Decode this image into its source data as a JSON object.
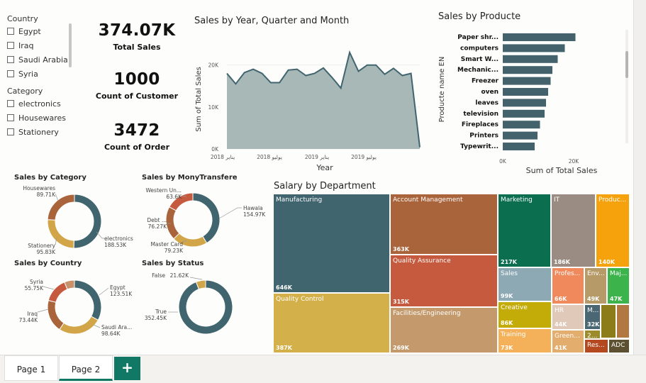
{
  "slicers": {
    "country": {
      "title": "Country",
      "items": [
        "Egypt",
        "Iraq",
        "Saudi Arabia",
        "Syria"
      ]
    },
    "category": {
      "title": "Category",
      "items": [
        "electronics",
        "Housewares",
        "Stationery"
      ]
    }
  },
  "kpis": [
    {
      "value": "374.07K",
      "label": "Total Sales"
    },
    {
      "value": "1000",
      "label": "Count of Customer"
    },
    {
      "value": "3472",
      "label": "Count of Order"
    }
  ],
  "colors": {
    "teal": "#41656f",
    "orange": "#d3a549",
    "brown": "#a9643b",
    "red": "#c55a3f",
    "area": "#a7b8b7",
    "bar": "#44626c",
    "green": "#117865"
  },
  "chart_data": [
    {
      "id": "sales_area",
      "type": "area",
      "title": "Sales by Year, Quarter and Month",
      "xlabel": "Year",
      "ylabel": "Sum of Total Sales",
      "x_ticks": [
        "2018 يناير",
        "2018 يوليو",
        "2019 يناير",
        "2019 يوليو"
      ],
      "y_ticks": [
        "0K",
        "10K",
        "20K"
      ],
      "ylim": [
        0,
        24000
      ],
      "values": [
        18000,
        15500,
        18200,
        19000,
        18000,
        15800,
        15800,
        18800,
        19000,
        17500,
        18000,
        19300,
        17000,
        14500,
        23000,
        18500,
        20000,
        20000,
        17800,
        19200,
        17500,
        18000,
        400
      ]
    },
    {
      "id": "sales_product",
      "type": "bar",
      "orientation": "horizontal",
      "title": "Sales by Producte",
      "xlabel": "Sum of Total Sales",
      "ylabel": "Producte name EN",
      "x_ticks": [
        "0K",
        "20K"
      ],
      "xlim": [
        0,
        25000
      ],
      "categories": [
        "Paper shr...",
        "computers",
        "Smart W...",
        "Mechanic...",
        "Freezer",
        "oven",
        "leaves",
        "television",
        "Fireplaces",
        "Printers",
        "Typewrit..."
      ],
      "values": [
        20500,
        17500,
        15500,
        14000,
        13500,
        12800,
        12200,
        11800,
        10500,
        9800,
        9000
      ]
    },
    {
      "id": "sales_category",
      "type": "pie",
      "donut": true,
      "title": "Sales by Category",
      "slices": [
        {
          "label": "electronics",
          "value": 188.53,
          "display": "188.53K",
          "color": "#41656f"
        },
        {
          "label": "Stationery",
          "value": 95.83,
          "display": "95.83K",
          "color": "#d3a549"
        },
        {
          "label": "Housewares",
          "value": 89.71,
          "display": "89.71K",
          "color": "#a9643b"
        }
      ]
    },
    {
      "id": "sales_money",
      "type": "pie",
      "donut": true,
      "title": "Sales by MonyTransfere",
      "slices": [
        {
          "label": "Hawala",
          "value": 154.97,
          "display": "154.97K",
          "color": "#41656f"
        },
        {
          "label": "Master Card",
          "value": 79.23,
          "display": "79.23K",
          "color": "#d3a549"
        },
        {
          "label": "Debt ...",
          "value": 76.27,
          "display": "76.27K",
          "color": "#a9643b"
        },
        {
          "label": "Western Un...",
          "value": 63.6,
          "display": "63.6K",
          "color": "#c55a3f"
        }
      ]
    },
    {
      "id": "sales_country",
      "type": "pie",
      "donut": true,
      "title": "Sales by Country",
      "slices": [
        {
          "label": "Egypt",
          "value": 123.51,
          "display": "123.51K",
          "color": "#41656f"
        },
        {
          "label": "Saudi Ara...",
          "value": 98.64,
          "display": "98.64K",
          "color": "#d3a549"
        },
        {
          "label": "Iraq",
          "value": 73.44,
          "display": "73.44K",
          "color": "#a9643b"
        },
        {
          "label": "Syria",
          "value": 55.75,
          "display": "55.75K",
          "color": "#c55a3f"
        },
        {
          "label": "",
          "value": 22.73,
          "display": "",
          "color": "#c9916a"
        }
      ]
    },
    {
      "id": "sales_status",
      "type": "pie",
      "donut": true,
      "title": "Sales by Status",
      "slices": [
        {
          "label": "True",
          "value": 352.45,
          "display": "352.45K",
          "color": "#41656f"
        },
        {
          "label": "False",
          "value": 21.62,
          "display": "21.62K",
          "color": "#d3a549"
        }
      ]
    },
    {
      "id": "salary_dept",
      "type": "treemap",
      "title": "Salary by Department",
      "cells": [
        {
          "name": "Manufacturing",
          "value": "646K",
          "color": "#41656f"
        },
        {
          "name": "Quality Control",
          "value": "387K",
          "color": "#d3b049"
        },
        {
          "name": "Account Management",
          "value": "363K",
          "color": "#a9643b"
        },
        {
          "name": "Quality Assurance",
          "value": "315K",
          "color": "#c55a3f"
        },
        {
          "name": "Facilities/Engineering",
          "value": "269K",
          "color": "#c49a6c"
        },
        {
          "name": "Marketing",
          "value": "217K",
          "color": "#0b6e4f"
        },
        {
          "name": "IT",
          "value": "186K",
          "color": "#9a8c82"
        },
        {
          "name": "Produc...",
          "value": "140K",
          "color": "#f5a20c"
        },
        {
          "name": "Sales",
          "value": "99K",
          "color": "#8da9b4"
        },
        {
          "name": "Profes...",
          "value": "66K",
          "color": "#f08a5d"
        },
        {
          "name": "Env...",
          "value": "49K",
          "color": "#b69a68"
        },
        {
          "name": "Maj...",
          "value": "47K",
          "color": "#3cb44b"
        },
        {
          "name": "Creative",
          "value": "86K",
          "color": "#c4ac08"
        },
        {
          "name": "HR",
          "value": "44K",
          "color": "#e0c9b8"
        },
        {
          "name": "M...",
          "value": "32K",
          "color": "#4b6773"
        },
        {
          "name": "",
          "value": "",
          "color": "#8c7d1a"
        },
        {
          "name": "",
          "value": "",
          "color": "#b17841"
        },
        {
          "name": "2...",
          "value": "",
          "color": "#9c8b2b"
        },
        {
          "name": "Training",
          "value": "73K",
          "color": "#f5b15a"
        },
        {
          "name": "Green...",
          "value": "41K",
          "color": "#e3ad6e"
        },
        {
          "name": "Res...",
          "value": "",
          "color": "#b4481e"
        },
        {
          "name": "ADC",
          "value": "",
          "color": "#5c5030"
        }
      ]
    }
  ],
  "tabs": {
    "page1": "Page 1",
    "page2": "Page 2",
    "add": "+"
  }
}
